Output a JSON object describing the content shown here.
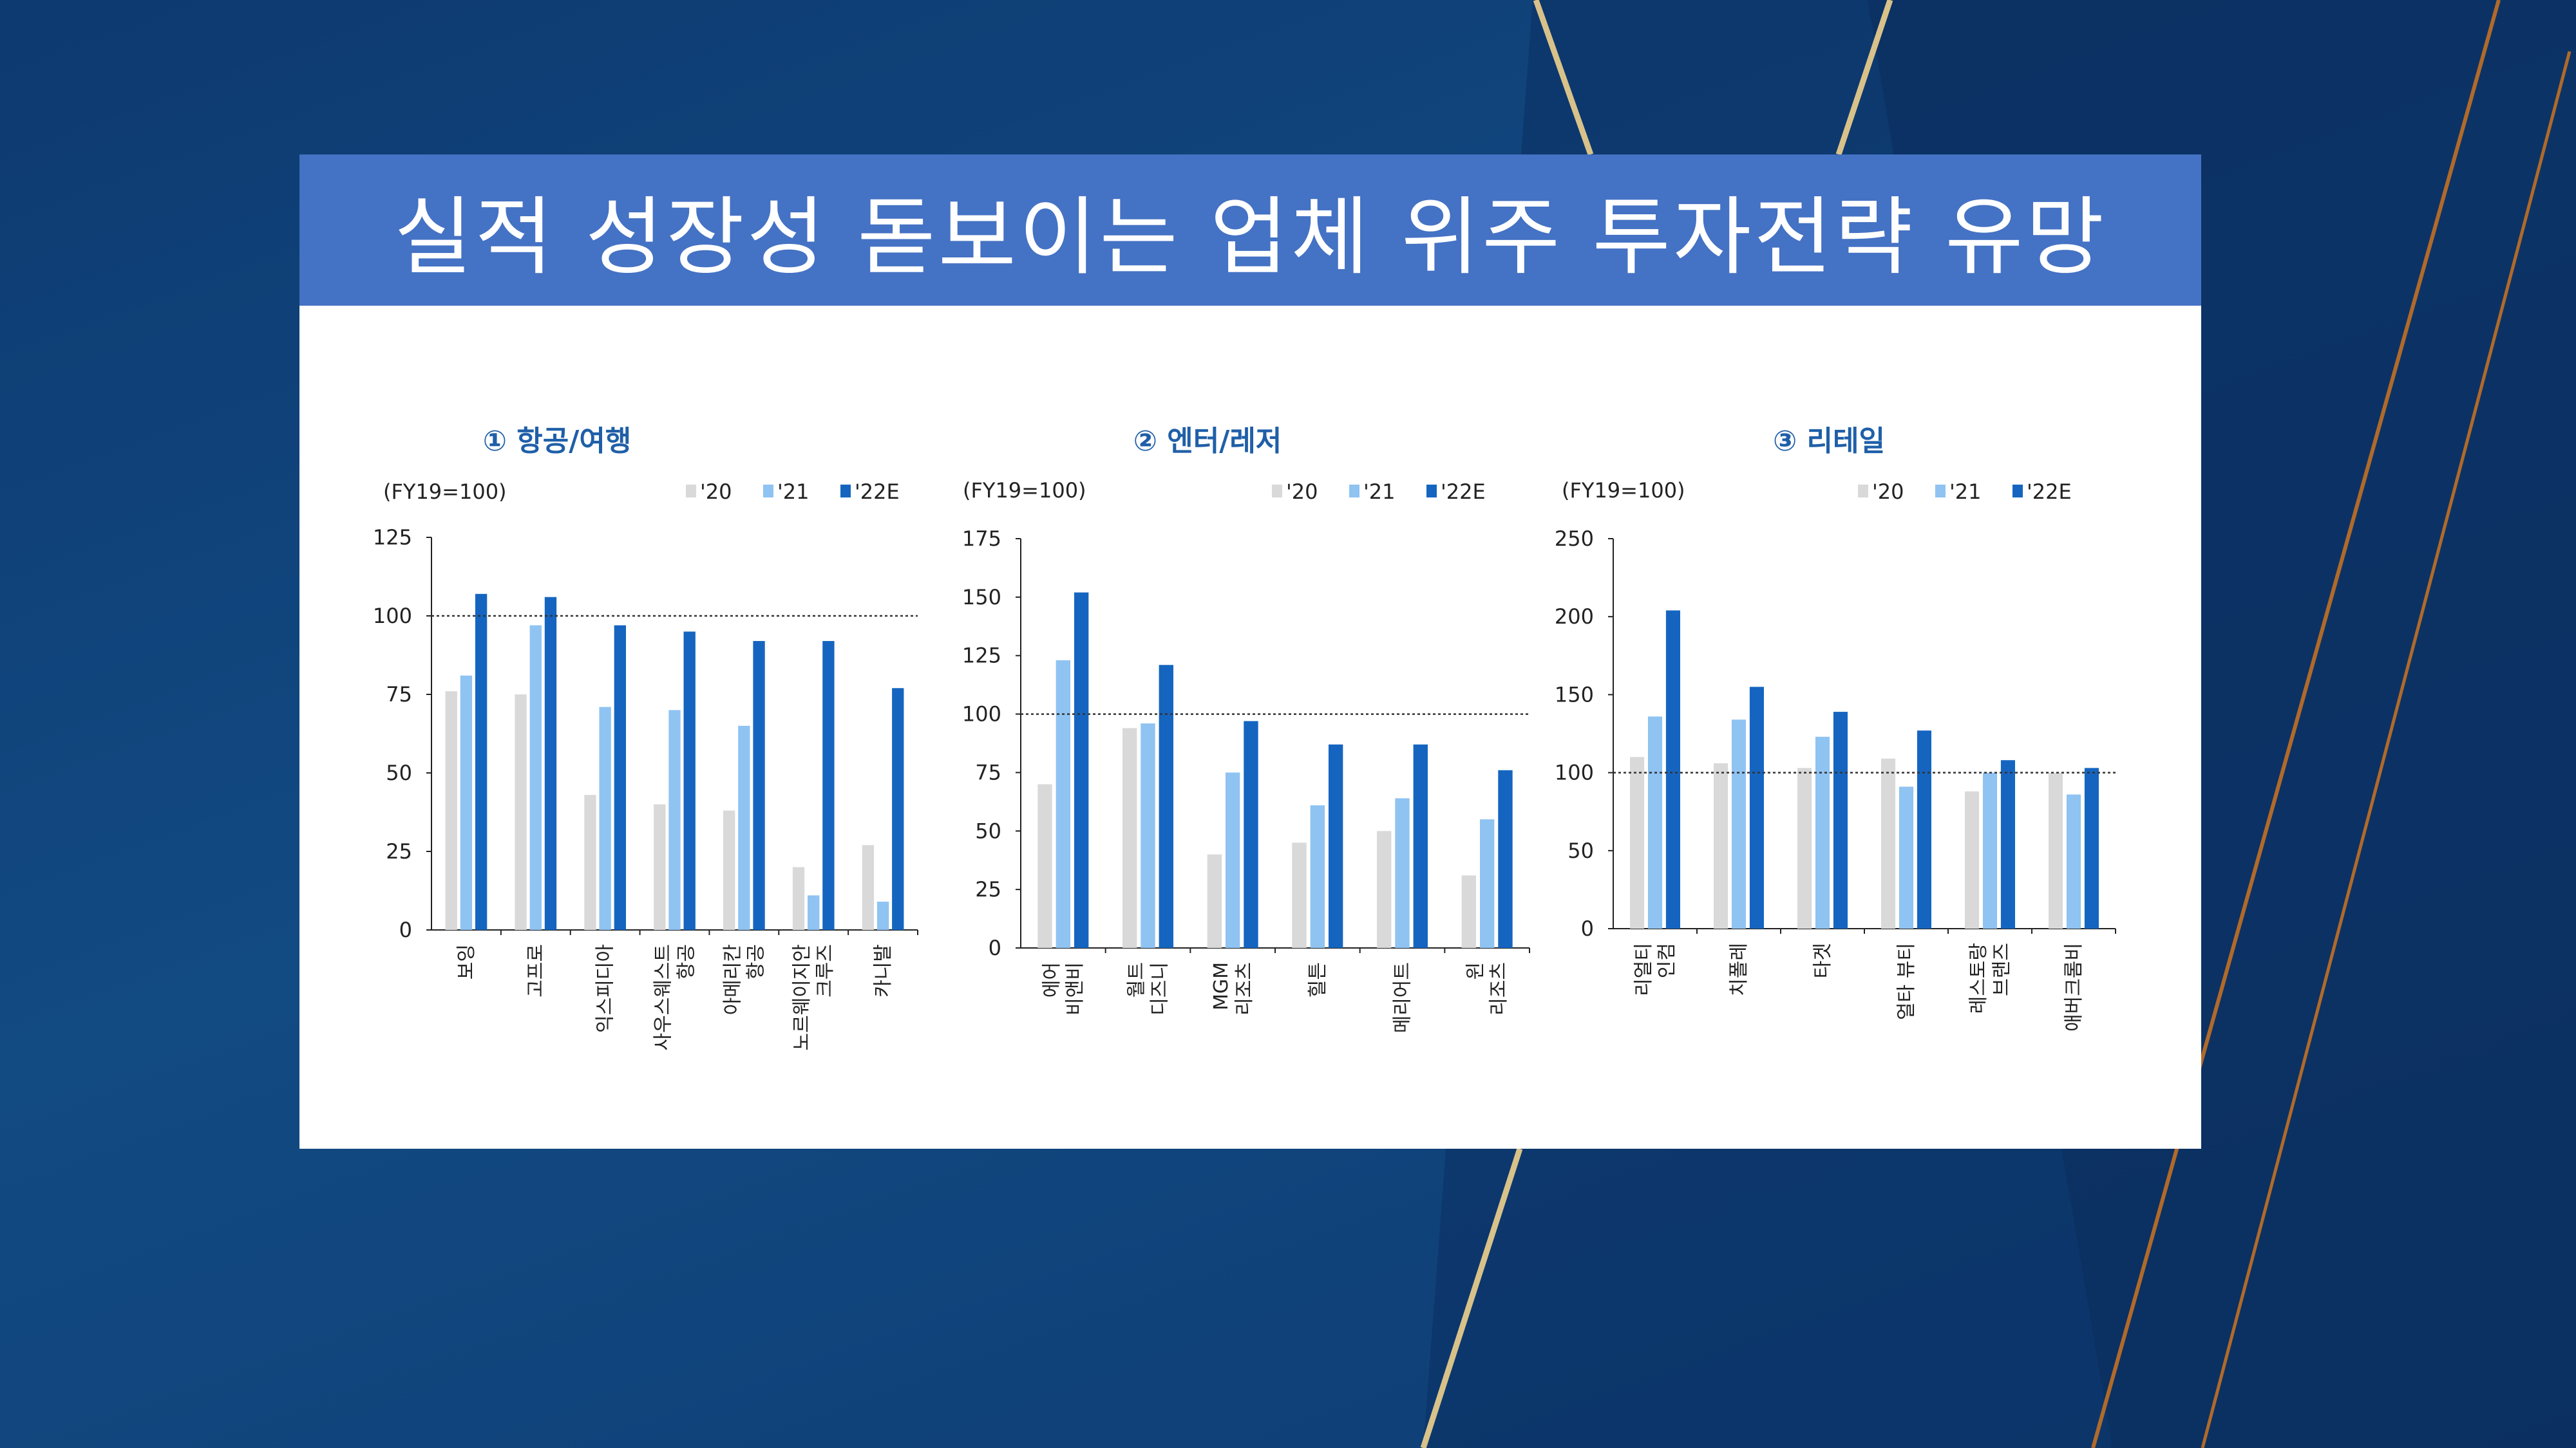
{
  "slide": {
    "title": "실적 성장성 돋보이는 업체 위주 투자전략 유망"
  },
  "colors": {
    "background": "#124a82",
    "title_bar": "#4472c4",
    "accent_gold": "#d8c28a",
    "series": [
      "#d9d9d9",
      "#8fc3f2",
      "#1565c0"
    ]
  },
  "chart_data": [
    {
      "type": "bar",
      "title": "① 항공/여행",
      "note": "(FY19=100)",
      "categories": [
        "보잉",
        "고프로",
        "익스피디아",
        "사우스웨스트\n항공",
        "아메리칸\n항공",
        "노르웨이지안\n크루즈",
        "카니발"
      ],
      "series": [
        {
          "name": "'20",
          "values": [
            76,
            75,
            43,
            40,
            38,
            20,
            27
          ]
        },
        {
          "name": "'21",
          "values": [
            81,
            97,
            71,
            70,
            65,
            11,
            9
          ]
        },
        {
          "name": "'22E",
          "values": [
            107,
            106,
            97,
            95,
            92,
            92,
            77
          ]
        }
      ],
      "ylim": [
        0,
        125
      ],
      "yticks": [
        0,
        25,
        50,
        75,
        100,
        125
      ],
      "reference_line": 100,
      "legend": "top-right"
    },
    {
      "type": "bar",
      "title": "② 엔터/레저",
      "note": "(FY19=100)",
      "categories": [
        "에어\n비앤비",
        "월트\n디즈니",
        "MGM\n리조츠",
        "힐튼",
        "메리어트",
        "윈\n리조츠"
      ],
      "series": [
        {
          "name": "'20",
          "values": [
            70,
            94,
            40,
            45,
            50,
            31
          ]
        },
        {
          "name": "'21",
          "values": [
            123,
            96,
            75,
            61,
            64,
            55
          ]
        },
        {
          "name": "'22E",
          "values": [
            152,
            121,
            97,
            87,
            87,
            76
          ]
        }
      ],
      "ylim": [
        0,
        175
      ],
      "yticks": [
        0,
        25,
        50,
        75,
        100,
        125,
        150,
        175
      ],
      "reference_line": 100,
      "legend": "top-right"
    },
    {
      "type": "bar",
      "title": "③ 리테일",
      "note": "(FY19=100)",
      "categories": [
        "리얼티\n인컴",
        "치폴레",
        "타겟",
        "얼타 뷰티",
        "레스토랑\n브랜즈",
        "애버크롬비"
      ],
      "series": [
        {
          "name": "'20",
          "values": [
            110,
            106,
            103,
            109,
            88,
            100
          ]
        },
        {
          "name": "'21",
          "values": [
            136,
            134,
            123,
            91,
            100,
            86
          ]
        },
        {
          "name": "'22E",
          "values": [
            204,
            155,
            139,
            127,
            108,
            103
          ]
        }
      ],
      "ylim": [
        0,
        250
      ],
      "yticks": [
        0,
        50,
        100,
        150,
        200,
        250
      ],
      "reference_line": 100,
      "legend": "top-right"
    }
  ]
}
